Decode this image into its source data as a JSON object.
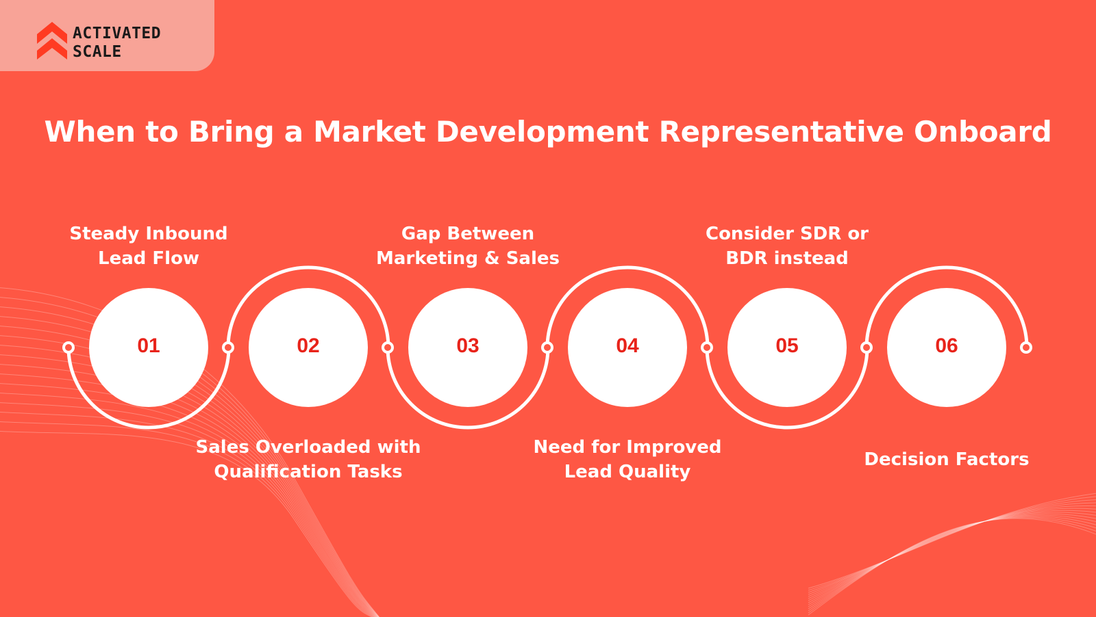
{
  "brand": {
    "name_line1": "ACTIVATED",
    "name_line2": "SCALE",
    "colors": {
      "panel": "#f8a397",
      "mark": "#ff3b22",
      "text": "#1a1a1a"
    }
  },
  "title": "When to Bring a Market Development Representative Onboard",
  "colors": {
    "background": "#fe5744",
    "circle_fill": "#ffffff",
    "number_text": "#e8231a",
    "label_text": "#ffffff",
    "connector": "#ffffff"
  },
  "steps": [
    {
      "number": "01",
      "label": "Steady Inbound\nLead Flow"
    },
    {
      "number": "02",
      "label": "Sales Overloaded with\nQualification Tasks"
    },
    {
      "number": "03",
      "label": "Gap Between\nMarketing & Sales"
    },
    {
      "number": "04",
      "label": "Need for Improved\nLead Quality"
    },
    {
      "number": "05",
      "label": "Consider SDR or\nBDR instead"
    },
    {
      "number": "06",
      "label": "Decision Factors"
    }
  ]
}
